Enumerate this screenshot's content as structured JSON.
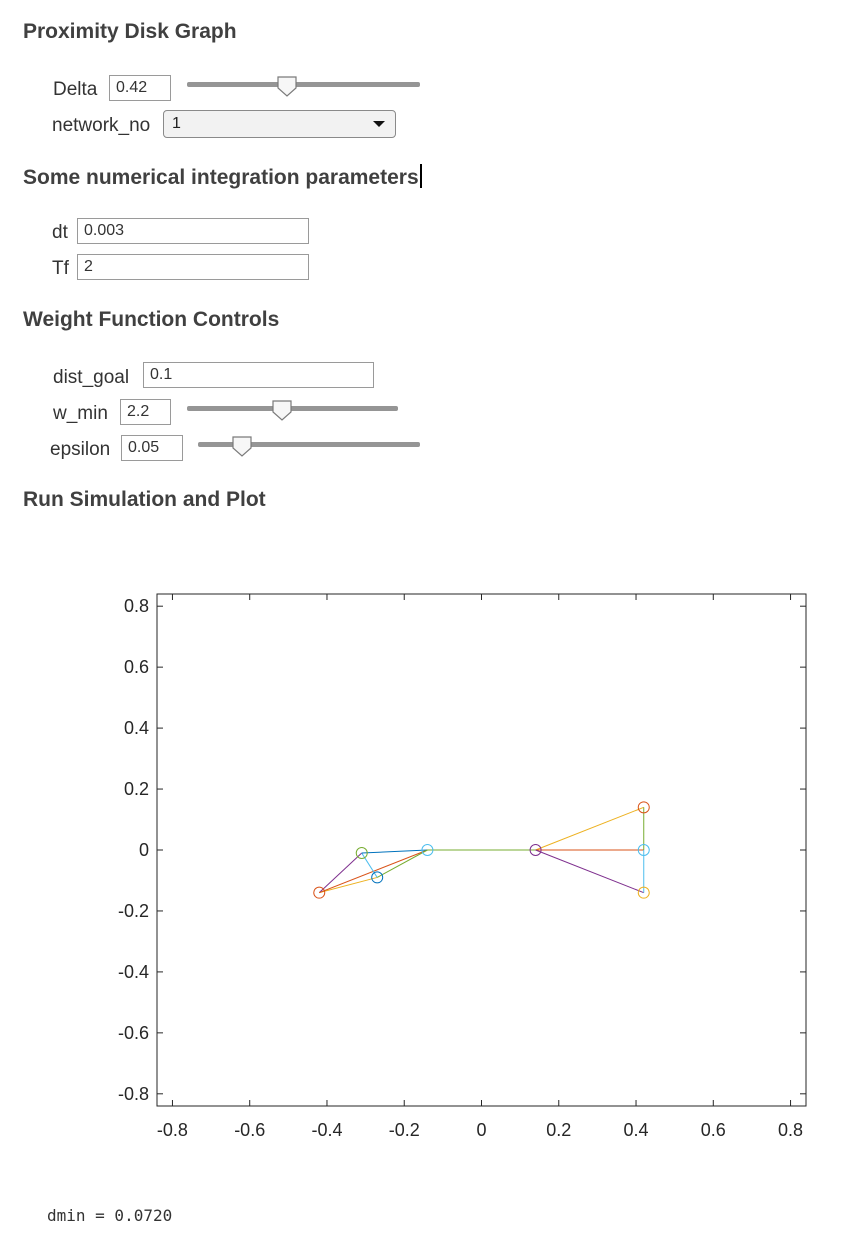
{
  "sections": {
    "proximity": {
      "title": "Proximity Disk Graph",
      "delta": {
        "label": "Delta",
        "value": "0.42",
        "slider_fraction": 0.43
      },
      "network": {
        "label": "network_no",
        "selected": "1"
      }
    },
    "integration": {
      "title": "Some numerical integration parameters",
      "dt": {
        "label": "dt",
        "value": "0.003"
      },
      "tf": {
        "label": "Tf",
        "value": "2"
      }
    },
    "weight": {
      "title": "Weight Function Controls",
      "dist_goal": {
        "label": "dist_goal",
        "value": "0.1"
      },
      "w_min": {
        "label": "w_min",
        "value": "2.2",
        "slider_fraction": 0.45
      },
      "epsilon": {
        "label": "epsilon",
        "value": "0.05",
        "slider_fraction": 0.2
      }
    },
    "run": {
      "title": "Run Simulation and Plot"
    }
  },
  "chart_data": {
    "type": "scatter",
    "title": "",
    "xlabel": "",
    "ylabel": "",
    "xlim": [
      -0.84,
      0.84
    ],
    "ylim": [
      -0.84,
      0.84
    ],
    "xticks": [
      -0.8,
      -0.6,
      -0.4,
      -0.2,
      0,
      0.2,
      0.4,
      0.6,
      0.8
    ],
    "yticks": [
      -0.8,
      -0.6,
      -0.4,
      -0.2,
      0,
      0.2,
      0.4,
      0.6,
      0.8
    ],
    "xtick_labels": [
      "-0.8",
      "-0.6",
      "-0.4",
      "-0.2",
      "0",
      "0.2",
      "0.4",
      "0.6",
      "0.8"
    ],
    "ytick_labels": [
      "-0.8",
      "-0.6",
      "-0.4",
      "-0.2",
      "0",
      "0.2",
      "0.4",
      "0.6",
      "0.8"
    ],
    "grid": false,
    "nodes": [
      {
        "x": -0.42,
        "y": -0.14,
        "color": "#d95319"
      },
      {
        "x": -0.31,
        "y": -0.01,
        "color": "#77ac30"
      },
      {
        "x": -0.27,
        "y": -0.09,
        "color": "#0072bd"
      },
      {
        "x": -0.14,
        "y": 0.0,
        "color": "#4dbeee"
      },
      {
        "x": 0.14,
        "y": 0.0,
        "color": "#7e2f8e"
      },
      {
        "x": 0.42,
        "y": 0.14,
        "color": "#d95319"
      },
      {
        "x": 0.42,
        "y": 0.0,
        "color": "#4dbeee"
      },
      {
        "x": 0.42,
        "y": -0.14,
        "color": "#edb120"
      }
    ],
    "edges": [
      {
        "from": 0,
        "to": 1,
        "color": "#7e2f8e"
      },
      {
        "from": 0,
        "to": 2,
        "color": "#edb120"
      },
      {
        "from": 0,
        "to": 3,
        "color": "#d95319"
      },
      {
        "from": 1,
        "to": 2,
        "color": "#4dbeee"
      },
      {
        "from": 1,
        "to": 3,
        "color": "#0072bd"
      },
      {
        "from": 2,
        "to": 3,
        "color": "#77ac30"
      },
      {
        "from": 3,
        "to": 4,
        "color": "#77ac30"
      },
      {
        "from": 4,
        "to": 5,
        "color": "#edb120"
      },
      {
        "from": 4,
        "to": 6,
        "color": "#d95319"
      },
      {
        "from": 4,
        "to": 7,
        "color": "#7e2f8e"
      },
      {
        "from": 5,
        "to": 6,
        "color": "#77ac30"
      },
      {
        "from": 6,
        "to": 7,
        "color": "#4dbeee"
      }
    ]
  },
  "output": {
    "text": "dmin = 0.0720"
  }
}
